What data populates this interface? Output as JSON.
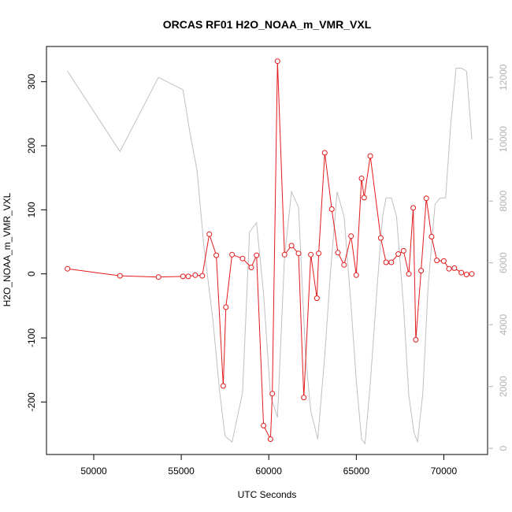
{
  "chart_data": {
    "type": "line",
    "title": "ORCAS RF01 H2O_NOAA_m_VMR_VXL",
    "xlabel": "UTC Seconds",
    "ylabel": "H2O_NOAA_m_VMR_VXL",
    "xlim": [
      47300,
      72500
    ],
    "ylim": [
      -282,
      355
    ],
    "y2lim": [
      -200,
      13000
    ],
    "x_ticks": [
      50000,
      55000,
      60000,
      65000,
      70000
    ],
    "x_tick_labels": [
      "50000",
      "55000",
      "60000",
      "65000",
      "70000"
    ],
    "y_ticks": [
      -200,
      -100,
      0,
      100,
      200,
      300
    ],
    "y_tick_labels": [
      "-200",
      "-100",
      "0",
      "100",
      "200",
      "300"
    ],
    "y2_ticks": [
      0,
      2000,
      4000,
      6000,
      8000,
      10000,
      12000
    ],
    "y2_tick_labels": [
      "0",
      "2000",
      "4000",
      "6000",
      "8000",
      "10000",
      "12000"
    ],
    "grid": false,
    "colors": {
      "primary": "#e31a1c",
      "secondary": "#c0c0c0",
      "axis": "#000000",
      "right_axis": "#b3b3b3"
    },
    "series": [
      {
        "axis": "left",
        "style": "line+points",
        "color": "#e31a1c",
        "x": [
          48500,
          51500,
          53700,
          55100,
          55400,
          55800,
          56200,
          56600,
          57000,
          57400,
          57550,
          57900,
          58500,
          59000,
          59300,
          59700,
          60100,
          60200,
          60500,
          60900,
          61300,
          61700,
          62000,
          62400,
          62750,
          62850,
          63200,
          63600,
          63950,
          64300,
          64700,
          65000,
          65300,
          65450,
          65800,
          66400,
          66700,
          67000,
          67400,
          67700,
          68000,
          68250,
          68400,
          68700,
          69000,
          69300,
          69600,
          70000,
          70300,
          70600,
          71000,
          71300,
          71600
        ],
        "y": [
          8,
          -3,
          -5,
          -4,
          -4,
          -2,
          -3,
          62,
          29,
          -175,
          -52,
          30,
          24,
          10,
          29,
          -237,
          -258,
          -187,
          332,
          30,
          44,
          32,
          -193,
          30,
          -38,
          32,
          189,
          101,
          33,
          14,
          59,
          -2,
          149,
          119,
          184,
          56,
          18,
          18,
          31,
          36,
          0,
          103,
          -103,
          5,
          118,
          58,
          21,
          20,
          8,
          9,
          2,
          -1,
          0
        ]
      },
      {
        "axis": "right",
        "style": "line",
        "color": "#c0c0c0",
        "x": [
          48500,
          51500,
          53700,
          55100,
          55500,
          55900,
          56300,
          56800,
          57200,
          57500,
          57900,
          58500,
          58900,
          59300,
          59700,
          60100,
          60500,
          60900,
          61300,
          61700,
          62100,
          62400,
          62800,
          63200,
          63500,
          63900,
          64300,
          64700,
          65000,
          65300,
          65500,
          65800,
          66200,
          66500,
          66700,
          67000,
          67300,
          67700,
          68000,
          68300,
          68500,
          68800,
          69100,
          69500,
          69800,
          70100,
          70400,
          70700,
          71000,
          71300,
          71600
        ],
        "y": [
          12200,
          9600,
          12000,
          11600,
          10200,
          9000,
          6500,
          4200,
          1800,
          400,
          200,
          1800,
          7000,
          7300,
          5000,
          1700,
          1000,
          6200,
          8300,
          7800,
          3000,
          1200,
          300,
          3000,
          5500,
          8300,
          7500,
          4600,
          2200,
          300,
          150,
          2100,
          5300,
          7500,
          8100,
          8100,
          7500,
          4600,
          1700,
          500,
          200,
          1800,
          5200,
          7900,
          8100,
          8100,
          10500,
          12300,
          12300,
          12200,
          10000
        ]
      }
    ]
  }
}
